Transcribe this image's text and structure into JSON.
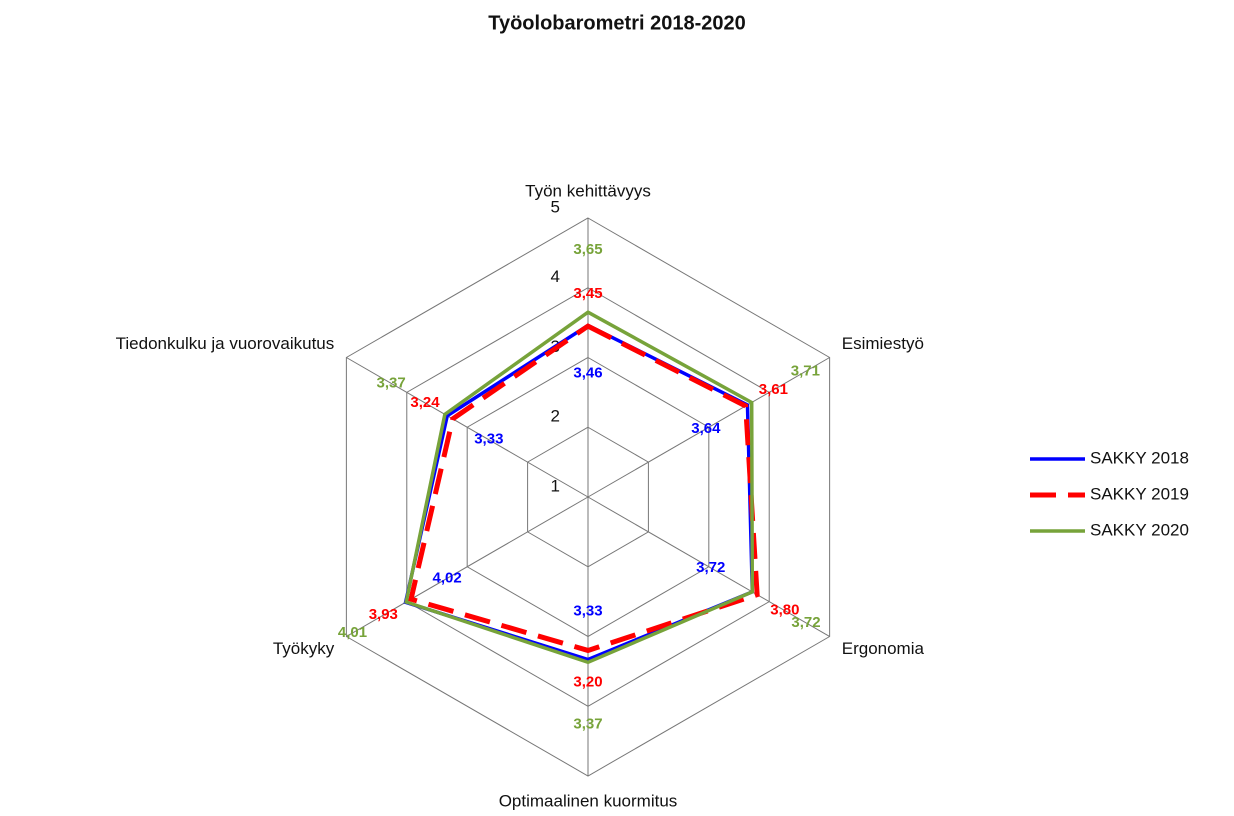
{
  "chart_data": {
    "type": "radar",
    "title": "Työolobarometri 2018-2020",
    "categories": [
      "Työn kehittävyys",
      "Esimiestyö",
      "Ergonomia",
      "Optimaalinen kuormitus",
      "Työkyky",
      "Tiedonkulku ja vuorovaikutus"
    ],
    "series": [
      {
        "name": "SAKKY 2018",
        "color": "#0000ff",
        "line_style": "solid",
        "values": [
          3.46,
          3.64,
          3.72,
          3.33,
          4.02,
          3.33
        ],
        "value_labels": [
          "3,46",
          "3,64",
          "3,72",
          "3,33",
          "4,02",
          "3,33"
        ]
      },
      {
        "name": "SAKKY 2019",
        "color": "#ff0000",
        "line_style": "dashed",
        "values": [
          3.45,
          3.61,
          3.8,
          3.2,
          3.93,
          3.24
        ],
        "value_labels": [
          "3,45",
          "3,61",
          "3,80",
          "3,20",
          "3,93",
          "3,24"
        ]
      },
      {
        "name": "SAKKY 2020",
        "color": "#77a33a",
        "line_style": "solid",
        "values": [
          3.65,
          3.71,
          3.72,
          3.37,
          4.01,
          3.37
        ],
        "value_labels": [
          "3,65",
          "3,71",
          "3,72",
          "3,37",
          "4,01",
          "3,37"
        ]
      }
    ],
    "rlim": [
      1,
      5
    ],
    "rticks": [
      1,
      2,
      3,
      4,
      5
    ],
    "legend": "right"
  }
}
